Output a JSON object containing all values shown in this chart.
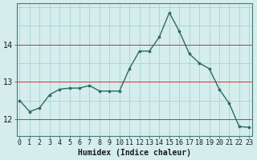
{
  "x": [
    0,
    1,
    2,
    3,
    4,
    5,
    6,
    7,
    8,
    9,
    10,
    11,
    12,
    13,
    14,
    15,
    16,
    17,
    18,
    19,
    20,
    21,
    22,
    23
  ],
  "y": [
    12.5,
    12.2,
    12.3,
    12.65,
    12.8,
    12.83,
    12.83,
    12.9,
    12.75,
    12.75,
    12.75,
    13.35,
    13.82,
    13.82,
    14.2,
    14.85,
    14.35,
    13.75,
    13.5,
    13.35,
    12.8,
    12.42,
    11.8,
    11.78
  ],
  "line_color": "#2d6b5e",
  "marker_color": "#2d6b5e",
  "bg_color": "#d5eded",
  "grid_color": "#aed6d6",
  "red_line_color": "#cc3333",
  "xlabel": "Humidex (Indice chaleur)",
  "yticks": [
    12,
    13,
    14
  ],
  "xticks": [
    0,
    1,
    2,
    3,
    4,
    5,
    6,
    7,
    8,
    9,
    10,
    11,
    12,
    13,
    14,
    15,
    16,
    17,
    18,
    19,
    20,
    21,
    22,
    23
  ],
  "xlim": [
    -0.3,
    23.3
  ],
  "ylim": [
    11.55,
    15.1
  ],
  "tick_fontsize": 6,
  "xlabel_fontsize": 7
}
